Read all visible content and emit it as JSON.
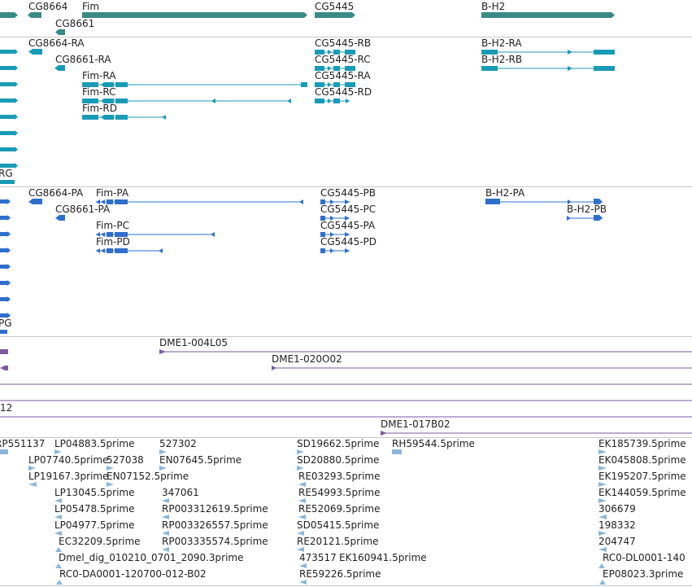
{
  "colors": {
    "gene": "#3a8a86",
    "transcript": "#199bb6",
    "protein": "#2f6fcc",
    "clone": "#7b5aa0",
    "est": "#8eb6d8"
  },
  "gene_track": {
    "labels": [
      "CG8664",
      "Fim",
      "CG5445",
      "B-H2",
      "CG8661"
    ]
  },
  "transcript_track": {
    "labels": [
      "CG8664-RA",
      "CG8661-RA",
      "Fim-RA",
      "Fim-RC",
      "Fim-RD",
      "CG5445-RB",
      "CG5445-RC",
      "CG5445-RA",
      "CG5445-RD",
      "B-H2-RA",
      "B-H2-RB",
      "RG"
    ]
  },
  "protein_track": {
    "labels": [
      "CG8664-PA",
      "Fim-PA",
      "CG8661-PA",
      "Fim-PC",
      "Fim-PD",
      "CG5445-PB",
      "CG5445-PC",
      "CG5445-PA",
      "CG5445-PD",
      "B-H2-PA",
      "B-H2-PB",
      "PG"
    ]
  },
  "clone_track": {
    "labels": [
      "DME1-004L05",
      "DME1-020O02",
      "12",
      "DME1-017B02"
    ]
  },
  "est_track": {
    "labels": [
      "RP551137",
      "LP04883.5prime",
      "527302",
      "SD19662.5prime",
      "RH59544.5prime",
      "EK185739.5prime",
      "LP07740.5prime",
      "527038",
      "EN07645.5prime",
      "SD20880.5prime",
      "EK045808.5prime",
      "LP19167.3prime",
      "EN07152.5prime",
      "RE03293.5prime",
      "EK195207.5prime",
      "LP13045.5prime",
      "347061",
      "RE54993.5prime",
      "EK144059.5prime",
      "LP05478.5prime",
      "RP003312619.5prime",
      "RE52069.5prime",
      "306679",
      "LP04977.5prime",
      "RP003326557.5prime",
      "SD05415.5prime",
      "198332",
      "EC32209.5prime",
      "RP003335574.5prime",
      "RE20121.5prime",
      "204747",
      "Dmel_dig_010210_0701_2090.3prime",
      "473517",
      "EK160941.5prime",
      "RC0-DL0001-140",
      "RC0-DA0001-120700-012-B02",
      "RE59226.5prime",
      "EP08023.3prime"
    ]
  }
}
